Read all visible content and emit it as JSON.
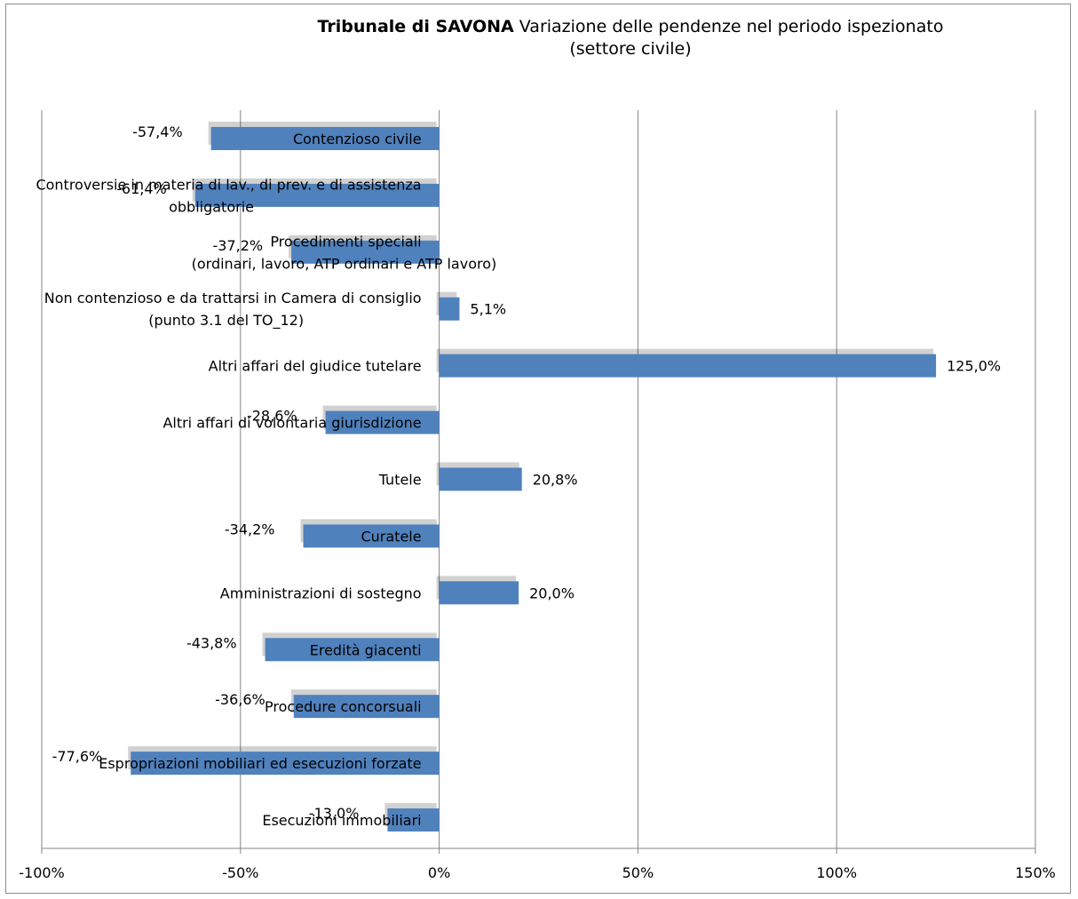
{
  "chart_data": {
    "type": "bar",
    "orientation": "horizontal",
    "title_bold": "Tribunale di SAVONA",
    "title_rest": " Variazione delle pendenze nel periodo ispezionato",
    "title_line2": "(settore civile)",
    "categories": [
      [
        "Contenzioso civile"
      ],
      [
        "Controversie in materia di lav., di prev. e di assistenza",
        "obbligatorie"
      ],
      [
        "Procedimenti speciali",
        "(ordinari, lavoro, ATP ordinari e ATP lavoro)"
      ],
      [
        "Non contenzioso e da trattarsi in Camera di consiglio",
        "(punto 3.1 del TO_12)"
      ],
      [
        "Altri affari del giudice tutelare"
      ],
      [
        "Altri affari di volontaria giurisdizione"
      ],
      [
        "Tutele"
      ],
      [
        "Curatele"
      ],
      [
        "Amministrazioni di sostegno"
      ],
      [
        "Eredità giacenti"
      ],
      [
        "Procedure concorsuali"
      ],
      [
        "Espropriazioni mobiliari ed esecuzioni forzate"
      ],
      [
        "Esecuzioni immobiliari"
      ]
    ],
    "values": [
      -57.4,
      -61.4,
      -37.2,
      5.1,
      125.0,
      -28.6,
      20.8,
      -34.2,
      20.0,
      -43.8,
      -36.6,
      -77.6,
      -13.0
    ],
    "data_labels": [
      "-57,4%",
      "-61,4%",
      "-37,2%",
      "5,1%",
      "125,0%",
      "-28,6%",
      "20,8%",
      "-34,2%",
      "20,0%",
      "-43,8%",
      "-36,6%",
      "-77,6%",
      "-13,0%"
    ],
    "xlim": [
      -100,
      150
    ],
    "ticks": [
      -100,
      -50,
      0,
      50,
      100,
      150
    ],
    "tick_labels": [
      "-100%",
      "-50%",
      "0%",
      "50%",
      "100%",
      "150%"
    ],
    "grid": true,
    "bar_color": "#4f81bd",
    "grid_color": "#868686"
  }
}
